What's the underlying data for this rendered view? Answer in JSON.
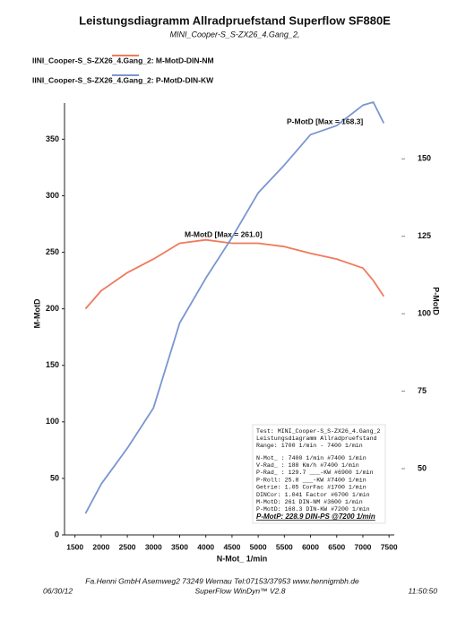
{
  "chart_data": {
    "type": "line",
    "title": "Leistungsdiagramm Allradpruefstand Superflow SF880E",
    "subtitle": "MINI_Cooper-S_S-ZX26_4.Gang_2,",
    "x_label": "N-Mot_ 1/min",
    "y_label": "M-MotD",
    "y2_label": "P-MotD",
    "x": [
      1700,
      2000,
      2500,
      3000,
      3500,
      4000,
      4500,
      5000,
      5500,
      6000,
      6500,
      7000,
      7200,
      7400
    ],
    "series": [
      {
        "name": "IINI_Cooper-S_S-ZX26_4.Gang_2: M-MotD-DIN-NM",
        "color": "#f07a5c",
        "values": [
          200,
          216,
          232,
          244,
          258,
          261,
          258,
          258,
          255,
          249,
          244,
          236,
          225,
          211
        ]
      },
      {
        "name": "IINI_Cooper-S_S-ZX26_4.Gang_2: P-MotD-DIN-KW",
        "color": "#7a96d2",
        "axis": "y2",
        "values": [
          35.5,
          45,
          56.6,
          69.6,
          97,
          111.5,
          124.6,
          139,
          148,
          157.8,
          160.7,
          167.3,
          168.3,
          161.5
        ]
      }
    ],
    "annotations": [
      "M-MotD [Max = 261.0]",
      "P-MotD [Max = 168.3]"
    ],
    "xlim": [
      1300,
      7600
    ],
    "xticks": [
      1500,
      2000,
      2500,
      3000,
      3500,
      4000,
      4500,
      5000,
      5500,
      6000,
      6500,
      7000,
      7500
    ],
    "ylim": [
      0,
      382
    ],
    "yticks": [
      0,
      50,
      100,
      150,
      200,
      250,
      300,
      350
    ],
    "y2lim": [
      28.6,
      168
    ],
    "y2ticks": [
      50,
      75,
      100,
      125,
      150
    ],
    "info_box": {
      "lines": [
        "Test: MINI_Cooper-S_S-ZX26_4.Gang_2",
        "Leistungsdiagramm Allradpruefstand",
        "Range: 1700 1/min - 7400 1/min"
      ],
      "rows": [
        "N-Mot_ :   7400 1/min  #7400 1/min",
        "V-Rad_ :    188  Km/h  #7400 1/min",
        "P-Rad_ :  129.7 ___-KW  #6900 1/min",
        "P-Roll:   25.8 ___-KW  #7400 1/min",
        "Getrie:   1.05 CorFac  #1700 1/min",
        "DINCor:  1.041 Factor  #6700 1/min",
        "M-MotD:    261 DIN-NM  #3600 1/min",
        "P-MotD:  168.3 DIN-KW  #7200 1/min"
      ],
      "summary": "P-MotP:  228.9 DIN-PS @7200 1/min"
    },
    "footer": {
      "company": "Fa.Henni GmbH    Asemweg2    73249 Wernau    Tel:07153/37953    www.hennigmbh.de",
      "date": "06/30/12",
      "software": "SuperFlow WinDyn™ V2.8",
      "time": "11:50:50"
    }
  }
}
